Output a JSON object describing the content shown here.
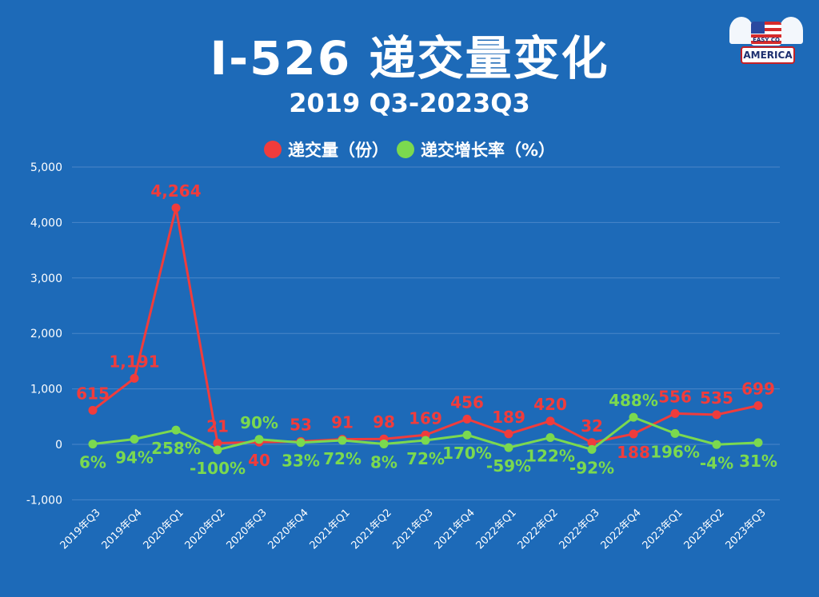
{
  "title": "I-526 递交量变化",
  "subtitle": "2019 Q3-2023Q3",
  "logo": {
    "top_text": "EASY CO",
    "main_text": "AMERICA"
  },
  "colors": {
    "background": "#1d6ab8",
    "series1": "#f03c3c",
    "series2": "#7bd94f",
    "grid": "#4a86c8",
    "text": "#ffffff"
  },
  "chart_data": {
    "type": "line",
    "title": "I-526 递交量变化",
    "subtitle": "2019 Q3-2023Q3",
    "legend_position": "top-center",
    "grid": true,
    "ylim": [
      -1000,
      5000
    ],
    "yticks": [
      -1000,
      0,
      1000,
      2000,
      3000,
      4000,
      5000
    ],
    "ytick_labels": [
      "-1,000",
      "0",
      "1,000",
      "2,000",
      "3,000",
      "4,000",
      "5,000"
    ],
    "categories": [
      "2019年Q3",
      "2019年Q4",
      "2020年Q1",
      "2020年Q2",
      "2020年Q3",
      "2020年Q4",
      "2021年Q1",
      "2021年Q2",
      "2021年Q3",
      "2021年Q4",
      "2022年Q1",
      "2022年Q2",
      "2022年Q3",
      "2022年Q4",
      "2023年Q1",
      "2023年Q2",
      "2023年Q3"
    ],
    "series": [
      {
        "name": "递交量（份）",
        "values": [
          615,
          1191,
          4264,
          21,
          40,
          53,
          91,
          98,
          169,
          456,
          189,
          420,
          32,
          188,
          556,
          535,
          699
        ],
        "labels": [
          "615",
          "1,191",
          "4,264",
          "21",
          "40",
          "53",
          "91",
          "98",
          "169",
          "456",
          "189",
          "420",
          "32",
          "188",
          "556",
          "535",
          "699"
        ]
      },
      {
        "name": "递交增长率（%）",
        "values": [
          6,
          94,
          258,
          -100,
          90,
          33,
          72,
          8,
          72,
          170,
          -59,
          122,
          -92,
          488,
          196,
          -4,
          31
        ],
        "labels": [
          "6%",
          "94%",
          "258%",
          "-100%",
          "90%",
          "33%",
          "72%",
          "8%",
          "72%",
          "170%",
          "-59%",
          "122%",
          "-92%",
          "488%",
          "196%",
          "-4%",
          "31%"
        ]
      }
    ]
  }
}
